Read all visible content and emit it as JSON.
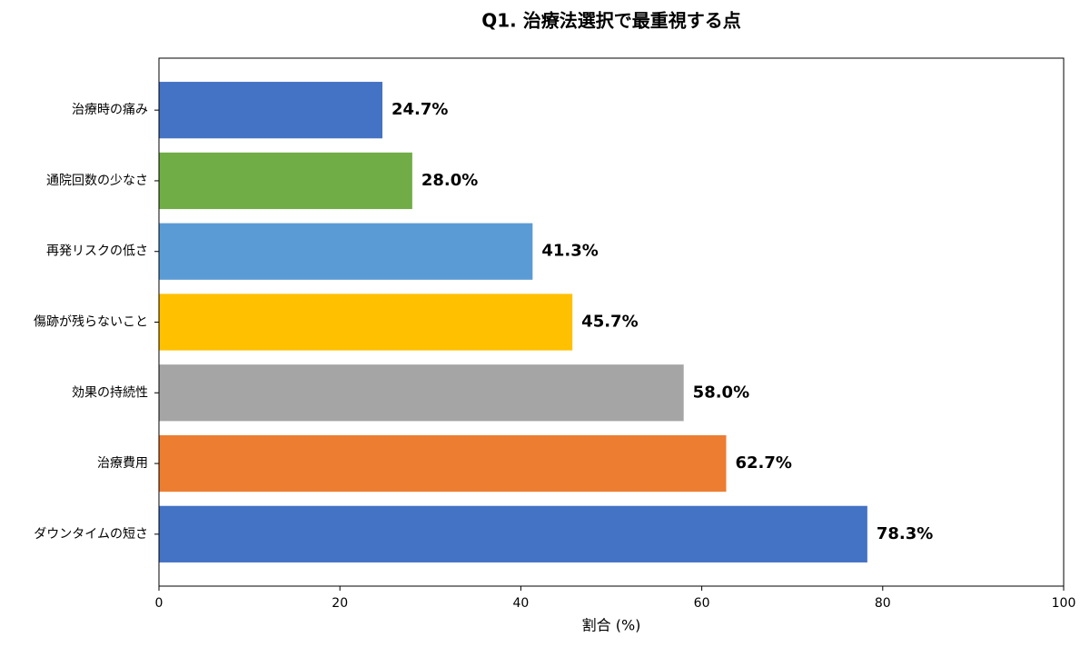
{
  "chart_data": {
    "type": "barh",
    "title": "Q1. 治療法選択で最重視する点",
    "x_label": "割合 (%)",
    "categories": [
      "治療時の痛み",
      "通院回数の少なさ",
      "再発リスクの低さ",
      "傷跡が残らないこと",
      "効果の持続性",
      "治療費用",
      "ダウンタイムの短さ"
    ],
    "values": [
      24.7,
      28.0,
      41.3,
      45.7,
      58.0,
      62.7,
      78.3
    ],
    "value_labels": [
      "24.7%",
      "28.0%",
      "41.3%",
      "45.7%",
      "58.0%",
      "62.7%",
      "78.3%"
    ],
    "colors": [
      "#4472c4",
      "#70ad47",
      "#5b9bd5",
      "#ffc000",
      "#a5a5a5",
      "#ed7d31",
      "#4472c4"
    ],
    "xlim": [
      0,
      100
    ],
    "xticks": [
      0,
      20,
      40,
      60,
      80,
      100
    ],
    "grid": false
  }
}
